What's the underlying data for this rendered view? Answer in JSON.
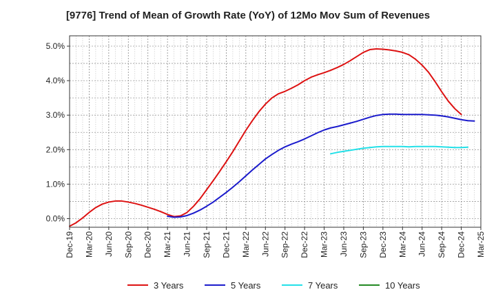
{
  "chart_data": {
    "type": "line",
    "title": "[9776]  Trend of Mean of Growth Rate (YoY) of 12Mo Mov Sum of Revenues",
    "xlabel": "",
    "ylabel": "",
    "x_ticks": [
      "Dec-19",
      "Mar-20",
      "Jun-20",
      "Sep-20",
      "Dec-20",
      "Mar-21",
      "Jun-21",
      "Sep-21",
      "Dec-21",
      "Mar-22",
      "Jun-22",
      "Sep-22",
      "Dec-22",
      "Mar-23",
      "Jun-23",
      "Sep-23",
      "Dec-23",
      "Mar-24",
      "Jun-24",
      "Sep-24",
      "Dec-24",
      "Mar-25"
    ],
    "y_ticks": [
      "0.0%",
      "1.0%",
      "2.0%",
      "3.0%",
      "4.0%",
      "5.0%"
    ],
    "ylim": [
      -0.25,
      5.3
    ],
    "grid": true,
    "legend_position": "bottom",
    "series": [
      {
        "name": "3 Years",
        "color": "#dd1111",
        "start_index": 0,
        "values": [
          -0.22,
          -0.12,
          0.02,
          0.18,
          0.32,
          0.42,
          0.48,
          0.51,
          0.51,
          0.48,
          0.44,
          0.39,
          0.33,
          0.27,
          0.2,
          0.12,
          0.06,
          0.08,
          0.18,
          0.36,
          0.58,
          0.84,
          1.1,
          1.37,
          1.65,
          1.94,
          2.25,
          2.56,
          2.84,
          3.1,
          3.32,
          3.5,
          3.62,
          3.69,
          3.78,
          3.88,
          4.0,
          4.1,
          4.17,
          4.23,
          4.3,
          4.38,
          4.47,
          4.58,
          4.7,
          4.82,
          4.9,
          4.92,
          4.91,
          4.89,
          4.86,
          4.82,
          4.75,
          4.62,
          4.45,
          4.24,
          3.97,
          3.68,
          3.41,
          3.19,
          3.02
        ]
      },
      {
        "name": "5 Years",
        "color": "#1a1acc",
        "start_index": 15,
        "values": [
          0.07,
          0.04,
          0.05,
          0.09,
          0.16,
          0.25,
          0.36,
          0.48,
          0.62,
          0.76,
          0.91,
          1.07,
          1.24,
          1.41,
          1.57,
          1.73,
          1.86,
          1.98,
          2.08,
          2.16,
          2.23,
          2.31,
          2.4,
          2.49,
          2.57,
          2.63,
          2.67,
          2.72,
          2.77,
          2.82,
          2.88,
          2.94,
          2.99,
          3.02,
          3.03,
          3.03,
          3.02,
          3.02,
          3.02,
          3.02,
          3.01,
          3.0,
          2.98,
          2.95,
          2.91,
          2.87,
          2.84,
          2.83
        ]
      },
      {
        "name": "7 Years",
        "color": "#22e0e8",
        "start_index": 40,
        "values": [
          1.88,
          1.92,
          1.95,
          1.98,
          2.01,
          2.04,
          2.06,
          2.08,
          2.09,
          2.09,
          2.09,
          2.09,
          2.08,
          2.09,
          2.09,
          2.09,
          2.09,
          2.08,
          2.07,
          2.06,
          2.06,
          2.07
        ]
      },
      {
        "name": "10 Years",
        "color": "#228822",
        "start_index": 0,
        "values": []
      }
    ]
  }
}
